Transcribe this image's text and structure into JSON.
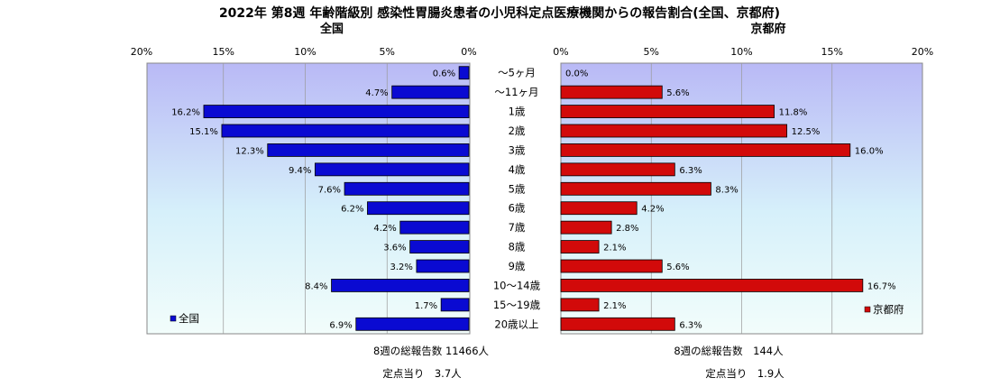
{
  "chart_data": {
    "type": "bar",
    "title": "2022年 第8週  年齢階級別 感染性胃腸炎患者の小児科定点医療機関からの報告割合(全国、京都府)",
    "categories": [
      "～5ヶ月",
      "～11ヶ月",
      "1歳",
      "2歳",
      "3歳",
      "4歳",
      "5歳",
      "6歳",
      "7歳",
      "8歳",
      "9歳",
      "10～14歳",
      "15～19歳",
      "20歳以上"
    ],
    "unit": "%",
    "xlim": [
      0,
      20
    ],
    "tick_values": [
      0,
      5,
      10,
      15,
      20
    ],
    "tick_labels": [
      "0%",
      "5%",
      "10%",
      "15%",
      "20%"
    ],
    "series": [
      {
        "name": "全国",
        "panel_title": "全国",
        "direction": "left",
        "color": "#0a0ad2",
        "values": [
          0.6,
          4.7,
          16.2,
          15.1,
          12.3,
          9.4,
          7.6,
          6.2,
          4.2,
          3.6,
          3.2,
          8.4,
          1.7,
          6.9
        ],
        "labels": [
          "0.6%",
          "4.7%",
          "16.2%",
          "15.1%",
          "12.3%",
          "9.4%",
          "7.6%",
          "6.2%",
          "4.2%",
          "3.6%",
          "3.2%",
          "8.4%",
          "1.7%",
          "6.9%"
        ],
        "legend_label": "全国",
        "legend_position": "bottom-left",
        "footer": {
          "total": "8週の総報告数 11466人",
          "per_site": "定点当り　3.7人"
        }
      },
      {
        "name": "京都府",
        "panel_title": "京都府",
        "direction": "right",
        "color": "#d20a0a",
        "values": [
          0.0,
          5.6,
          11.8,
          12.5,
          16.0,
          6.3,
          8.3,
          4.2,
          2.8,
          2.1,
          5.6,
          16.7,
          2.1,
          6.3
        ],
        "labels": [
          "0.0%",
          "5.6%",
          "11.8%",
          "12.5%",
          "16.0%",
          "6.3%",
          "8.3%",
          "4.2%",
          "2.8%",
          "2.1%",
          "5.6%",
          "16.7%",
          "2.1%",
          "6.3%"
        ],
        "legend_label": "京都府",
        "legend_position": "bottom-right",
        "footer": {
          "total": "8週の総報告数　144人",
          "per_site": "定点当り　1.9人"
        }
      }
    ],
    "gridlines": true
  }
}
